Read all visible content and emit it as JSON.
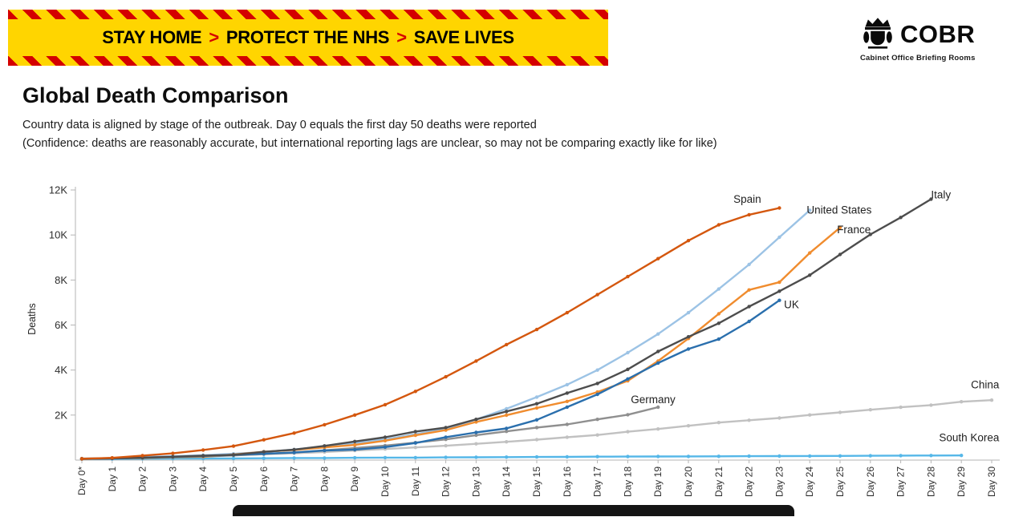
{
  "banner": {
    "segments": [
      "STAY HOME",
      "PROTECT THE NHS",
      "SAVE LIVES"
    ],
    "separator": ">",
    "bg_color": "#ffd500",
    "stripe_color": "#d40000",
    "separator_color": "#d40000"
  },
  "logo": {
    "title": "COBR",
    "subtitle": "Cabinet Office Briefing Rooms"
  },
  "header": {
    "title": "Global Death Comparison",
    "subtitle1": "Country data is aligned by stage of the outbreak. Day 0 equals the first day 50 deaths were reported",
    "subtitle2": "(Confidence: deaths are reasonably accurate, but international reporting lags are unclear, so may not be comparing exactly like for like)"
  },
  "chart_data": {
    "type": "line",
    "title": "Global Death Comparison",
    "xlabel": "",
    "ylabel": "Deaths",
    "ylim": [
      0,
      12000
    ],
    "grid": false,
    "legend_position": "inline-labels",
    "x_labels": [
      "Day 0*",
      "Day 1",
      "Day 2",
      "Day 3",
      "Day 4",
      "Day 5",
      "Day 6",
      "Day 7",
      "Day 8",
      "Day 9",
      "Day 10",
      "Day 11",
      "Day 12",
      "Day 13",
      "Day 14",
      "Day 15",
      "Day 16",
      "Day 17",
      "Day 18",
      "Day 19",
      "Day 20",
      "Day 21",
      "Day 22",
      "Day 23",
      "Day 24",
      "Day 25",
      "Day 26",
      "Day 27",
      "Day 28",
      "Day 29",
      "Day 30"
    ],
    "yticks": [
      {
        "v": 2000,
        "label": "2K"
      },
      {
        "v": 4000,
        "label": "4K"
      },
      {
        "v": 6000,
        "label": "6K"
      },
      {
        "v": 8000,
        "label": "8K"
      },
      {
        "v": 10000,
        "label": "10K"
      },
      {
        "v": 12000,
        "label": "12K"
      }
    ],
    "series": [
      {
        "name": "China",
        "color": "#c1c1c1",
        "values": [
          56,
          80,
          106,
          132,
          170,
          213,
          259,
          304,
          361,
          425,
          490,
          563,
          637,
          722,
          811,
          908,
          1016,
          1113,
          1259,
          1380,
          1523,
          1665,
          1770,
          1868,
          2004,
          2118,
          2236,
          2345,
          2442,
          2592,
          2663
        ]
      },
      {
        "name": "Germany",
        "color": "#8f8f8f",
        "values": [
          67,
          84,
          94,
          123,
          157,
          206,
          267,
          342,
          433,
          533,
          645,
          775,
          920,
          1107,
          1275,
          1444,
          1584,
          1810,
          2016,
          2349
        ]
      },
      {
        "name": "South Korea",
        "color": "#55b7e8",
        "values": [
          53,
          54,
          60,
          66,
          72,
          75,
          81,
          91,
          94,
          102,
          111,
          111,
          120,
          126,
          131,
          139,
          144,
          152,
          158,
          162,
          165,
          169,
          174,
          177,
          183,
          186,
          192,
          199,
          204,
          208
        ]
      },
      {
        "name": "United States",
        "color": "#9cc3e5",
        "values": [
          50,
          90,
          140,
          175,
          214,
          280,
          356,
          470,
          605,
          750,
          926,
          1150,
          1390,
          1800,
          2280,
          2800,
          3350,
          4000,
          4770,
          5600,
          6550,
          7600,
          8690,
          9900,
          11100
        ]
      },
      {
        "name": "France",
        "color": "#f08c2e",
        "values": [
          50,
          79,
          91,
          127,
          148,
          244,
          372,
          450,
          562,
          674,
          860,
          1100,
          1331,
          1696,
          1995,
          2314,
          2606,
          3024,
          3523,
          4400,
          5400,
          6500,
          7560,
          7900,
          9200,
          10330
        ]
      },
      {
        "name": "UK",
        "color": "#2a6fad",
        "values": [
          56,
          71,
          104,
          138,
          178,
          233,
          281,
          335,
          422,
          465,
          578,
          759,
          1019,
          1228,
          1408,
          1789,
          2352,
          2921,
          3605,
          4313,
          4934,
          5373,
          6159,
          7097
        ]
      },
      {
        "name": "Italy",
        "color": "#4d4d4d",
        "values": [
          52,
          79,
          107,
          148,
          197,
          233,
          366,
          463,
          631,
          827,
          1016,
          1266,
          1441,
          1809,
          2158,
          2503,
          2978,
          3405,
          4032,
          4825,
          5476,
          6077,
          6820,
          7503,
          8215,
          9134,
          10023,
          10779,
          11591
        ]
      },
      {
        "name": "Spain",
        "color": "#d4570e",
        "values": [
          60,
          100,
          200,
          300,
          450,
          620,
          900,
          1200,
          1570,
          2000,
          2460,
          3050,
          3700,
          4400,
          5130,
          5800,
          6550,
          7350,
          8150,
          8950,
          9750,
          10450,
          10900,
          11200
        ]
      }
    ],
    "labels": [
      {
        "text": "Spain",
        "day": 22.4,
        "value": 11430,
        "anchor": "end"
      },
      {
        "text": "United States",
        "day": 23.9,
        "value": 10950,
        "anchor": "start"
      },
      {
        "text": "France",
        "day": 24.9,
        "value": 10080,
        "anchor": "start"
      },
      {
        "text": "Italy",
        "day": 28.0,
        "value": 11630,
        "anchor": "start"
      },
      {
        "text": "UK",
        "day": 23.15,
        "value": 6750,
        "anchor": "start"
      },
      {
        "text": "Germany",
        "day": 18.1,
        "value": 2520,
        "anchor": "start"
      },
      {
        "text": "China",
        "day": 30.25,
        "value": 3180,
        "anchor": "end"
      },
      {
        "text": "South Korea",
        "day": 30.25,
        "value": 830,
        "anchor": "end"
      }
    ]
  }
}
